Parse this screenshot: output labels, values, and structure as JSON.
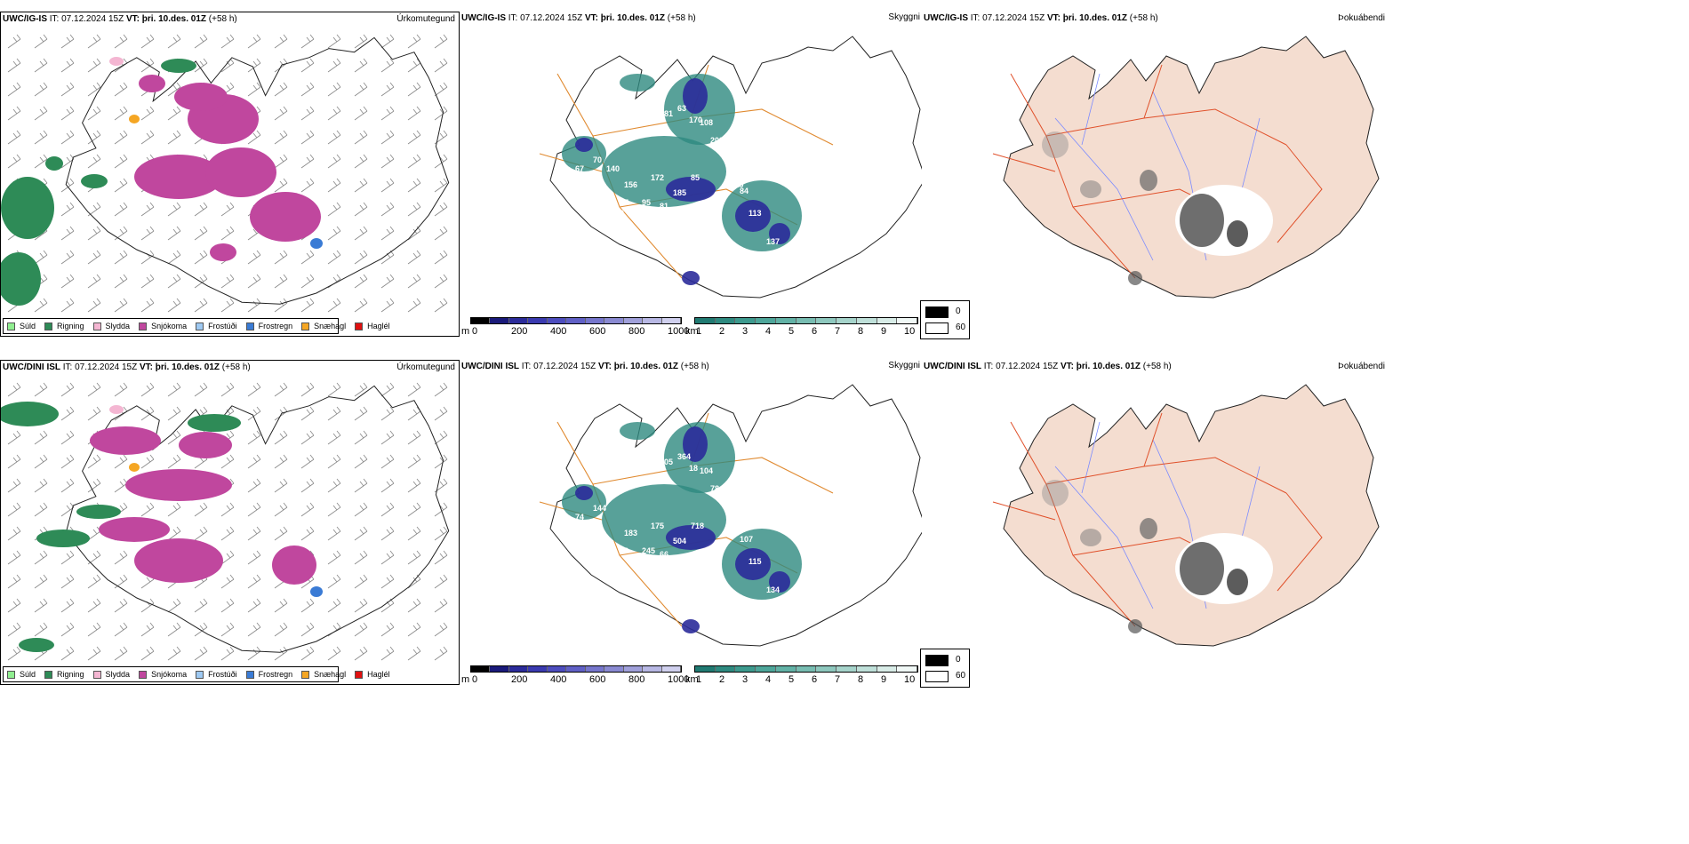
{
  "rows": [
    {
      "id": "top",
      "model": "UWC/IG-IS",
      "it": " IT: 07.12.2024 15Z ",
      "vt_label": "VT:",
      "vt_value": " þri. 10.des. 01Z",
      "lead": " (+58 h)",
      "labels": [
        "209",
        "181",
        "63",
        "170",
        "108",
        "203",
        "172",
        "85",
        "156",
        "185",
        "87",
        "95",
        "81",
        "119",
        "84",
        "113",
        "137",
        "70",
        "67",
        "76",
        "10",
        "140"
      ]
    },
    {
      "id": "bottom",
      "model": "UWC/DINI ISL",
      "it": " IT: 07.12.2024 15Z ",
      "vt_label": "VT:",
      "vt_value": " þri. 10.des. 01Z",
      "lead": " (+58 h)",
      "labels": [
        "343",
        "105",
        "364",
        "18",
        "104",
        "78",
        "175",
        "718",
        "183",
        "504",
        "82",
        "245",
        "66",
        "60",
        "107",
        "115",
        "134",
        "144",
        "74",
        "13"
      ]
    }
  ],
  "panels": {
    "precip": "Úrkomutegund",
    "cloud": "Skyggni",
    "fog": "Þokuábendi"
  },
  "precip_legend": [
    {
      "label": "Súld",
      "color": "#90ee90"
    },
    {
      "label": "Rigning",
      "color": "#2e8b57"
    },
    {
      "label": "Slydda",
      "color": "#f4b6d2"
    },
    {
      "label": "Snjókoma",
      "color": "#c0479e"
    },
    {
      "label": "Frostúði",
      "color": "#9ec9f2"
    },
    {
      "label": "Frostregn",
      "color": "#3a7bd5"
    },
    {
      "label": "Snæhagl",
      "color": "#f5a623"
    },
    {
      "label": "Haglél",
      "color": "#e01010"
    }
  ],
  "cloud_base": {
    "unit": "m",
    "ticks": [
      "0",
      "200",
      "400",
      "600",
      "800",
      "1000"
    ],
    "colors": [
      "#000000",
      "#1a1a7a",
      "#2b2b9a",
      "#3a3ab0",
      "#4d4dbe",
      "#6060c6",
      "#7676cc",
      "#8a8ad2",
      "#a0a0da",
      "#b8b8e4",
      "#d0d0ee"
    ]
  },
  "visibility": {
    "unit": "km",
    "ticks": [
      "1",
      "2",
      "3",
      "4",
      "5",
      "6",
      "7",
      "8",
      "9",
      "10"
    ],
    "colors": [
      "#207a72",
      "#2e8a80",
      "#3d9a8e",
      "#4ea69a",
      "#62b2a6",
      "#78bdb2",
      "#8ec8be",
      "#a6d4cb",
      "#bfe0d9",
      "#d8ece7",
      "#f0f8f6"
    ]
  },
  "fog_legend": [
    {
      "label": "0",
      "color": "#000000"
    },
    {
      "label": "60",
      "color": "#ffffff"
    }
  ]
}
